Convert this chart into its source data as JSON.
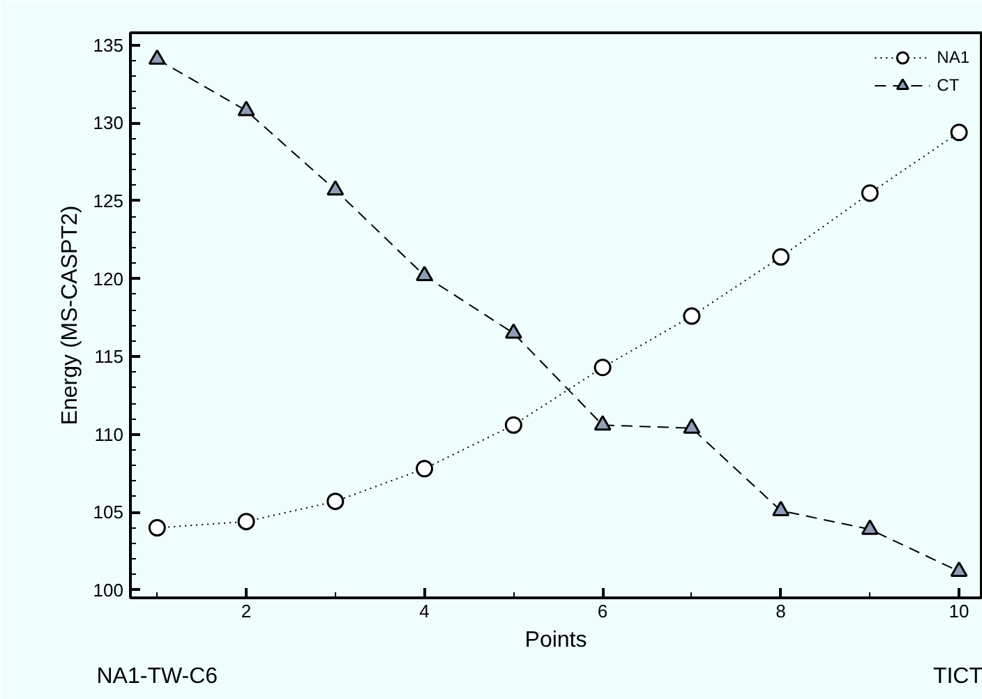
{
  "chart_data": {
    "type": "line",
    "xlabel": "Points",
    "ylabel": "Energy (MS-CASPT2)",
    "x": [
      1,
      2,
      3,
      4,
      5,
      6,
      7,
      8,
      9,
      10
    ],
    "xlim": [
      0.7,
      10.25
    ],
    "ylim": [
      99.5,
      135.8
    ],
    "xticks": [
      2,
      4,
      6,
      8,
      10
    ],
    "yticks": [
      100,
      105,
      110,
      115,
      120,
      125,
      130,
      135
    ],
    "grid": false,
    "legend": "top right",
    "annotations": [
      "NA1-TW-C6",
      "TICT"
    ],
    "series": [
      {
        "name": "NA1",
        "color": "#000000",
        "marker": "circle",
        "line_style": "dotted",
        "values": [
          104.0,
          104.4,
          105.7,
          107.8,
          110.6,
          114.3,
          117.6,
          121.4,
          125.5,
          129.4
        ]
      },
      {
        "name": "CT",
        "color": "#000000",
        "marker": "triangle",
        "line_style": "dashed",
        "values": [
          134.1,
          130.8,
          125.7,
          120.2,
          116.5,
          110.6,
          110.4,
          105.1,
          103.9,
          101.2
        ]
      }
    ]
  }
}
